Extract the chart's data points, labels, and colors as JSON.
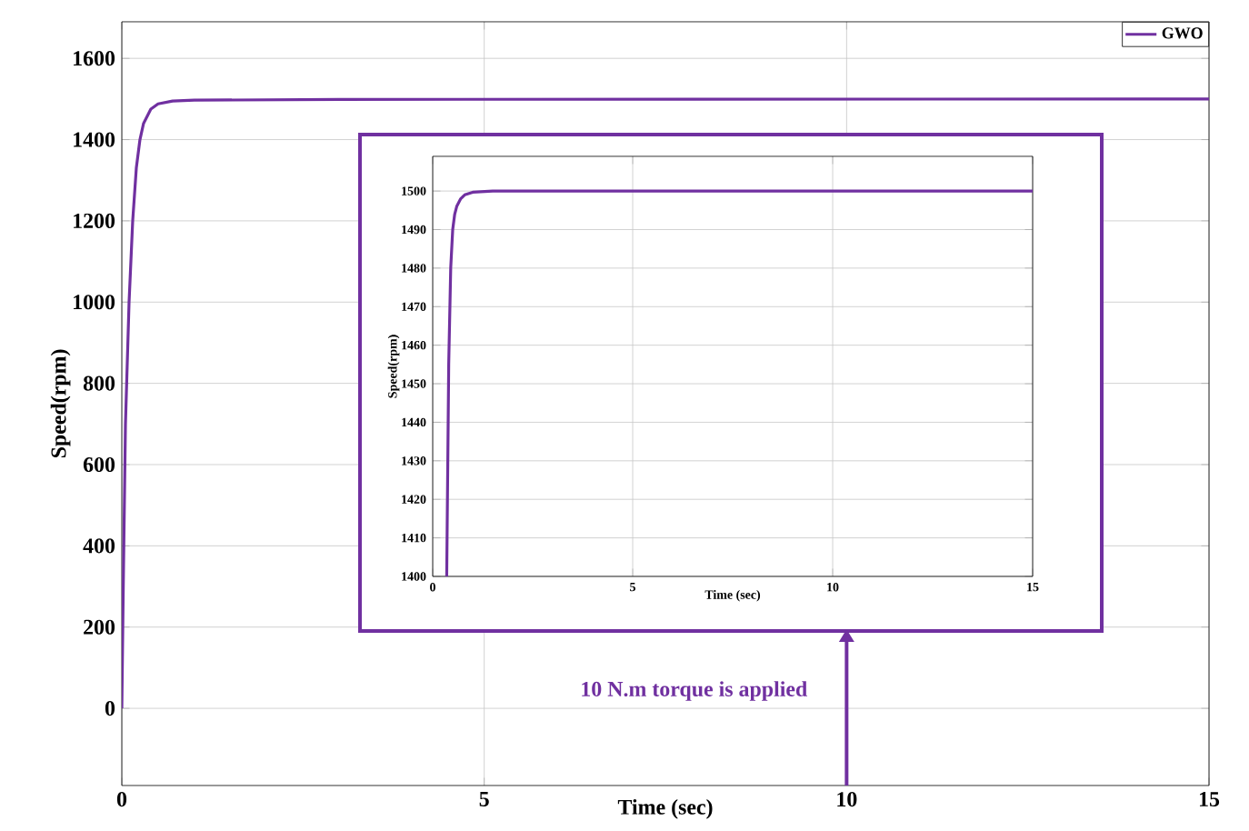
{
  "chart_data": [
    {
      "type": "line",
      "xlabel": "Time (sec)",
      "ylabel": "Speed(rpm)",
      "x": [
        0,
        0.02,
        0.05,
        0.1,
        0.15,
        0.2,
        0.25,
        0.3,
        0.4,
        0.5,
        0.7,
        1,
        3,
        15
      ],
      "series": [
        {
          "name": "GWO",
          "color": "#7030a0",
          "values": [
            0,
            300,
            700,
            1000,
            1200,
            1330,
            1400,
            1440,
            1475,
            1488,
            1495,
            1497,
            1499,
            1500
          ]
        }
      ],
      "xlim": [
        0,
        15
      ],
      "ylim": [
        -190,
        1690
      ],
      "xticks": [
        0,
        5,
        10,
        15
      ],
      "yticks": [
        0,
        200,
        400,
        600,
        800,
        1000,
        1200,
        1400,
        1600
      ],
      "grid": true,
      "legend": "top right",
      "ref_lines": [
        {
          "axis": "x",
          "value": 10,
          "label": "10 N.m torque is applied",
          "color": "#7030a0"
        }
      ]
    },
    {
      "type": "line",
      "xlabel": "Time (sec)",
      "ylabel": "Speed(rpm)",
      "x": [
        0.35,
        0.4,
        0.45,
        0.5,
        0.55,
        0.6,
        0.7,
        0.8,
        1,
        1.5,
        15
      ],
      "series": [
        {
          "color": "#7030a0",
          "values": [
            1400,
            1455,
            1480,
            1490,
            1494,
            1496,
            1498,
            1499,
            1499.7,
            1500,
            1500
          ]
        }
      ],
      "xlim": [
        0,
        15
      ],
      "ylim": [
        1400,
        1509
      ],
      "xticks": [
        0,
        5,
        10,
        15
      ],
      "yticks": [
        1400,
        1410,
        1420,
        1430,
        1440,
        1450,
        1460,
        1470,
        1480,
        1490,
        1500
      ],
      "grid": true
    }
  ]
}
